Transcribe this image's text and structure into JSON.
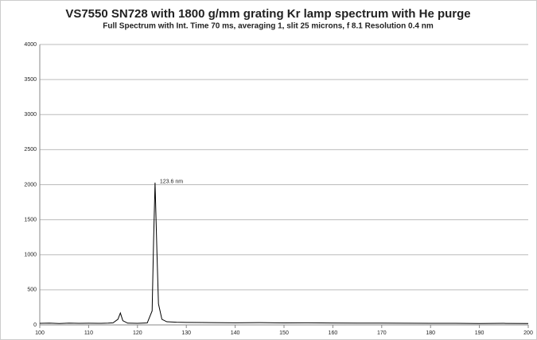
{
  "chart_data": {
    "type": "line",
    "title": "VS7550 SN728 with 1800 g/mm grating Kr lamp spectrum with He purge",
    "subtitle": "Full Spectrum with Int. Time 70 ms, averaging 1, slit 25 microns, f 8.1  Resolution 0.4 nm",
    "annotation": "123.6 nm",
    "x": [
      100,
      102,
      104,
      106,
      108,
      110,
      112,
      114,
      115,
      116,
      116.5,
      117,
      118,
      120,
      122,
      123,
      123.3,
      123.6,
      124,
      124.3,
      125,
      126,
      128,
      130,
      135,
      140,
      145,
      150,
      155,
      160,
      165,
      170,
      175,
      180,
      185,
      190,
      195,
      200
    ],
    "series": [
      {
        "name": "Kr lamp spectrum",
        "color": "#000000",
        "values": [
          22,
          25,
          20,
          26,
          23,
          24,
          22,
          25,
          30,
          80,
          170,
          60,
          25,
          22,
          28,
          200,
          1200,
          2030,
          1000,
          300,
          80,
          45,
          38,
          35,
          33,
          30,
          32,
          28,
          30,
          27,
          26,
          25,
          24,
          22,
          23,
          20,
          22,
          20
        ]
      }
    ],
    "xlim": [
      100,
      200
    ],
    "xticks": [
      100,
      110,
      120,
      130,
      140,
      150,
      160,
      170,
      180,
      190,
      200
    ],
    "ylim": [
      0,
      4000
    ],
    "yticks": [
      0,
      500,
      1000,
      1500,
      2000,
      2500,
      3000,
      3500,
      4000
    ],
    "grid": true
  }
}
